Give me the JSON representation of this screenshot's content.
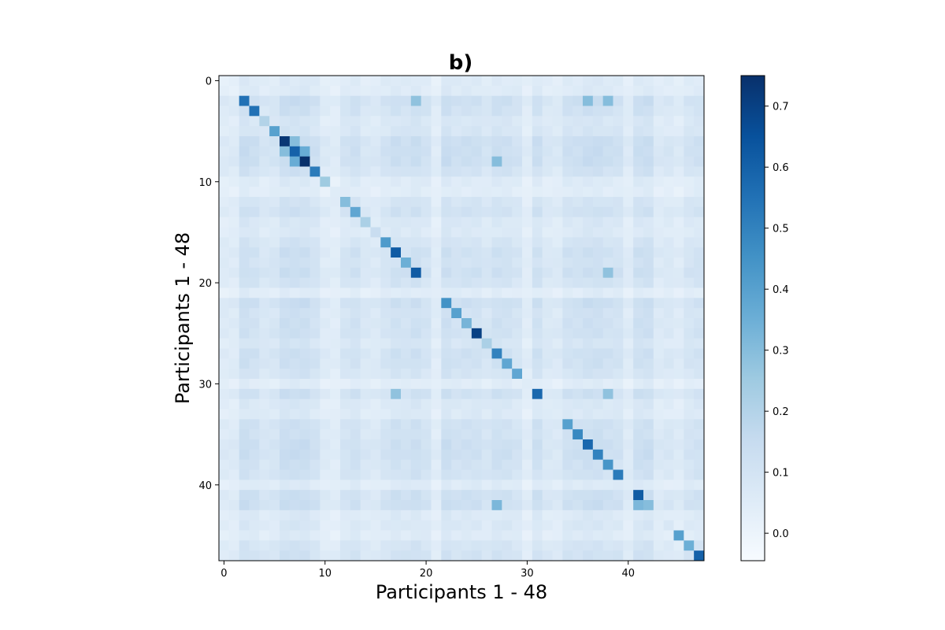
{
  "chart_data": {
    "type": "heatmap",
    "title": "b)",
    "xlabel": "Participants 1 - 48",
    "ylabel": "Participants 1 - 48",
    "n": 48,
    "x_ticks": [
      "0",
      "10",
      "20",
      "30",
      "40"
    ],
    "y_ticks": [
      "0",
      "10",
      "20",
      "30",
      "40"
    ],
    "colormap": "Blues",
    "colorbar": {
      "vmin": -0.045,
      "vmax": 0.75,
      "ticks": [
        "0.0",
        "0.1",
        "0.2",
        "0.3",
        "0.4",
        "0.5",
        "0.6",
        "0.7"
      ]
    },
    "row_base": [
      0.03,
      0.03,
      0.14,
      0.11,
      0.06,
      0.07,
      0.15,
      0.15,
      0.15,
      0.1,
      0.03,
      0.02,
      0.08,
      0.11,
      0.05,
      0.04,
      0.08,
      0.12,
      0.1,
      0.13,
      0.09,
      0.02,
      0.14,
      0.1,
      0.11,
      0.11,
      0.07,
      0.12,
      0.11,
      0.08,
      0.02,
      0.12,
      0.05,
      0.04,
      0.11,
      0.11,
      0.14,
      0.14,
      0.11,
      0.1,
      0.03,
      0.13,
      0.14,
      0.04,
      0.05,
      0.03,
      0.08,
      0.1
    ],
    "diagonal": [
      0.02,
      0.02,
      0.55,
      0.55,
      0.2,
      0.4,
      0.73,
      0.6,
      0.75,
      0.52,
      0.25,
      0.05,
      0.3,
      0.38,
      0.22,
      0.14,
      0.42,
      0.62,
      0.35,
      0.62,
      0.08,
      0.04,
      0.45,
      0.4,
      0.33,
      0.7,
      0.22,
      0.5,
      0.38,
      0.38,
      0.05,
      0.58,
      0.05,
      0.05,
      0.4,
      0.48,
      0.58,
      0.5,
      0.44,
      0.52,
      0.05,
      0.62,
      0.3,
      0.05,
      0.08,
      0.4,
      0.35,
      0.6
    ],
    "highlights": [
      {
        "row": 2,
        "col": 36,
        "value": 0.3
      },
      {
        "row": 2,
        "col": 38,
        "value": 0.3
      },
      {
        "row": 2,
        "col": 19,
        "value": 0.28
      },
      {
        "row": 7,
        "col": 8,
        "value": 0.36
      },
      {
        "row": 8,
        "col": 7,
        "value": 0.36
      },
      {
        "row": 6,
        "col": 7,
        "value": 0.3
      },
      {
        "row": 7,
        "col": 6,
        "value": 0.3
      },
      {
        "row": 8,
        "col": 27,
        "value": 0.3
      },
      {
        "row": 19,
        "col": 38,
        "value": 0.28
      },
      {
        "row": 31,
        "col": 17,
        "value": 0.28
      },
      {
        "row": 31,
        "col": 38,
        "value": 0.28
      },
      {
        "row": 42,
        "col": 41,
        "value": 0.32
      },
      {
        "row": 42,
        "col": 42,
        "value": 0.3
      },
      {
        "row": 42,
        "col": 27,
        "value": 0.32
      }
    ]
  }
}
